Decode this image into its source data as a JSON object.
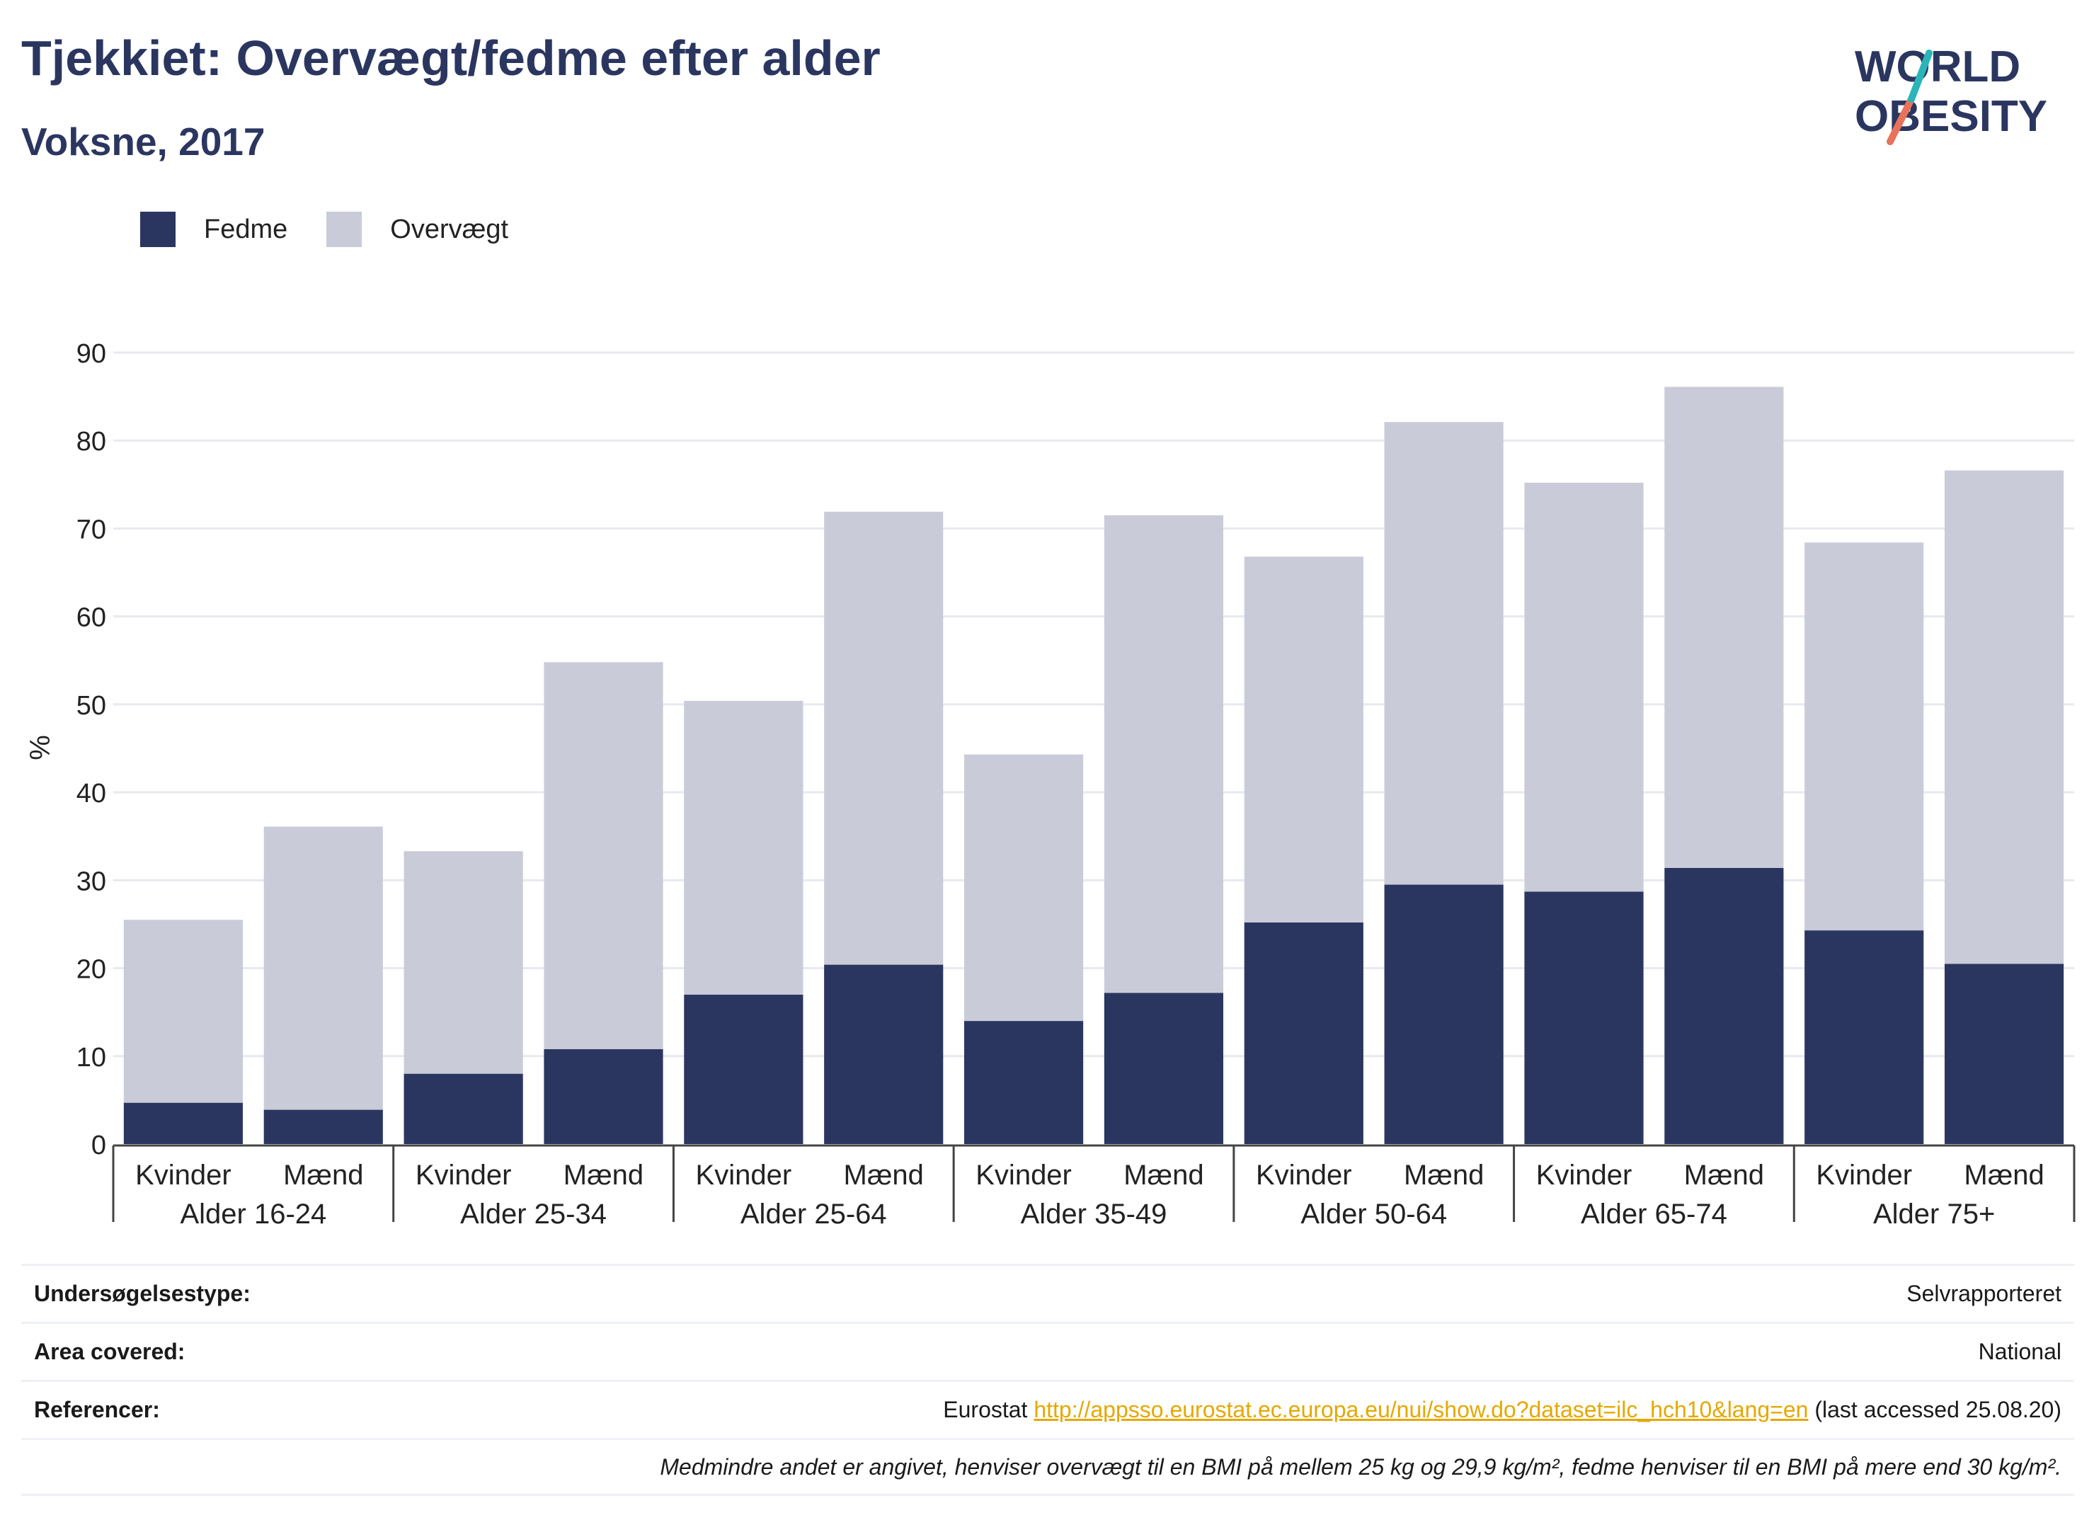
{
  "title": "Tjekkiet: Overvægt/fedme efter alder",
  "subtitle": "Voksne, 2017",
  "logo": {
    "line1": "WORLD",
    "line2": "OBESITY",
    "accent_colors": [
      "#2bb5b8",
      "#e8735a"
    ]
  },
  "legend": [
    {
      "label": "Fedme",
      "color": "#2b3660"
    },
    {
      "label": "Overvægt",
      "color": "#c9ccd8"
    }
  ],
  "chart_data": {
    "type": "bar",
    "stacked": true,
    "ylabel": "%",
    "ylim": [
      0,
      90
    ],
    "yticks": [
      0,
      10,
      20,
      30,
      40,
      50,
      60,
      70,
      80,
      90
    ],
    "grid": true,
    "groups": [
      "Alder 16-24",
      "Alder 25-34",
      "Alder 25-64",
      "Alder 35-49",
      "Alder 50-64",
      "Alder 65-74",
      "Alder 75+"
    ],
    "subcategories": [
      "Kvinder",
      "Mænd"
    ],
    "series": [
      {
        "name": "Fedme",
        "color": "#2b3660",
        "values": [
          4.7,
          3.9,
          8.0,
          10.8,
          17.0,
          20.4,
          14.0,
          17.2,
          25.2,
          29.5,
          28.7,
          31.4,
          24.3,
          20.5
        ]
      },
      {
        "name": "Overvægt",
        "color": "#c9ccd8",
        "values": [
          20.8,
          32.2,
          25.3,
          44.0,
          33.4,
          51.5,
          30.3,
          54.3,
          41.6,
          52.6,
          46.5,
          54.7,
          44.1,
          56.1
        ]
      }
    ]
  },
  "meta": {
    "survey_label": "Undersøgelsestype:",
    "survey_value": "Selvrapporteret",
    "area_label": "Area covered:",
    "area_value": "National",
    "ref_label": "Referencer:",
    "ref_prefix": "Eurostat ",
    "ref_link": "http://appsso.eurostat.ec.europa.eu/nui/show.do?dataset=ilc_hch10&lang=en",
    "ref_suffix": " (last accessed 25.08.20)",
    "note": "Medmindre andet er angivet, henviser overvægt til en BMI på mellem 25 kg og 29,9 kg/m², fedme henviser til en BMI på mere end 30 kg/m²."
  }
}
